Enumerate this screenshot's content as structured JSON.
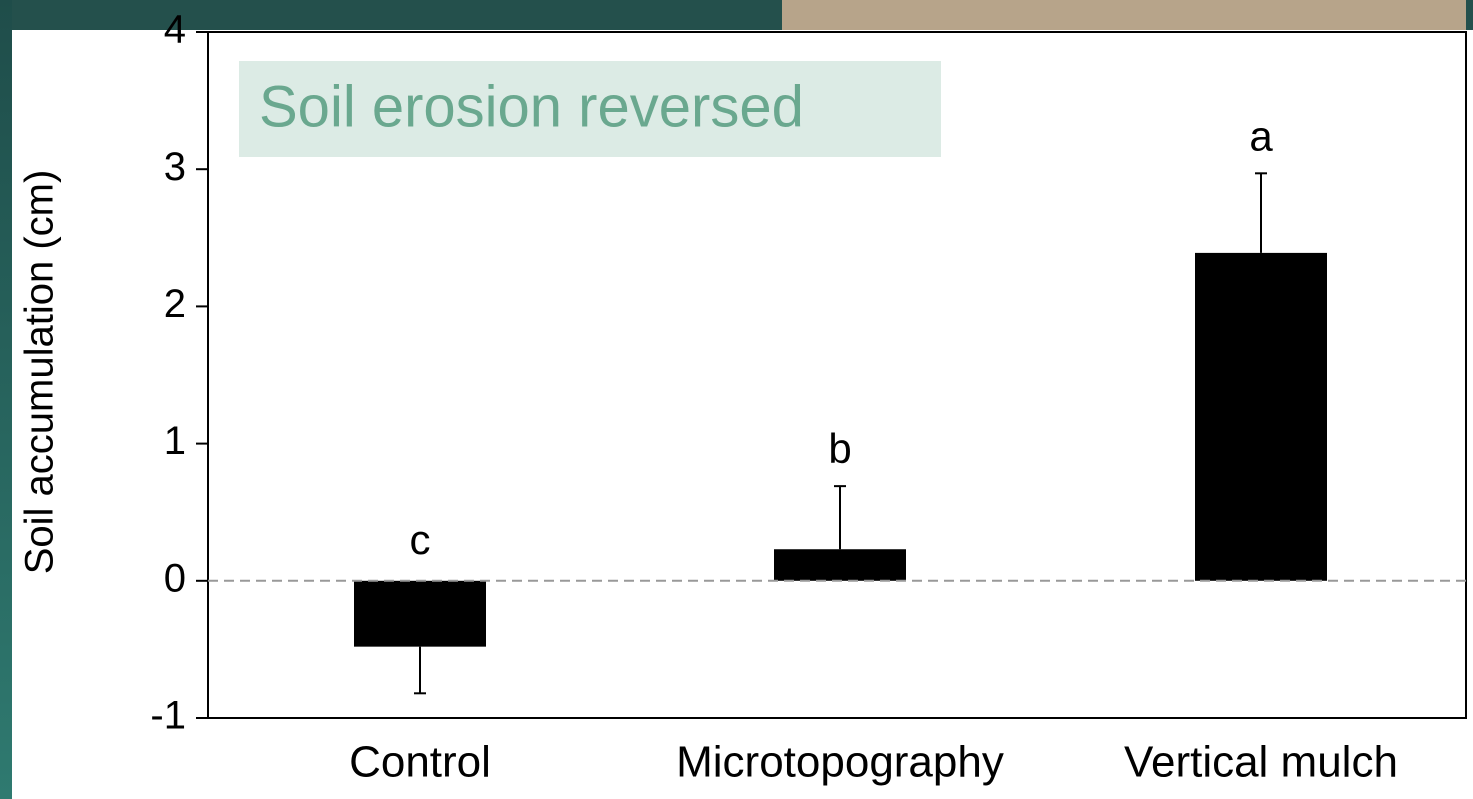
{
  "chart_data": {
    "type": "bar",
    "title": "Soil erosion reversed",
    "ylabel": "Soil accumulation (cm)",
    "categories": [
      "Control",
      "Microtopography",
      "Vertical mulch"
    ],
    "values": [
      -0.48,
      0.23,
      2.39
    ],
    "errors": [
      0.34,
      0.46,
      0.58
    ],
    "significance": [
      "c",
      "b",
      "a"
    ],
    "color": "#000000",
    "ylim": [
      -1,
      4
    ],
    "yticks": [
      -1,
      0,
      1,
      2,
      3,
      4
    ],
    "zero_line": true
  }
}
